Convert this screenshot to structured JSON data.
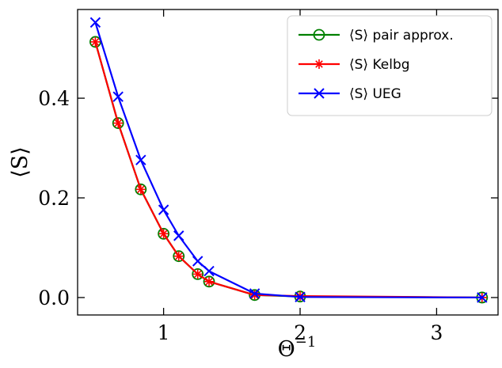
{
  "chart_data": {
    "type": "line",
    "xlabel": "Θ⁻¹",
    "ylabel": "⟨S⟩",
    "xlim": [
      0.37,
      3.45
    ],
    "ylim": [
      -0.035,
      0.578
    ],
    "xticks": [
      1,
      2,
      3
    ],
    "xtick_labels": [
      "1",
      "2",
      "3"
    ],
    "yticks": [
      0.0,
      0.2,
      0.4
    ],
    "ytick_labels": [
      "0.0",
      "0.2",
      "0.4"
    ],
    "grid": false,
    "legend_position": "top-right",
    "series": [
      {
        "name": "⟨S⟩ pair approx.",
        "color": "#008000",
        "marker": "circle",
        "x": [
          0.5,
          0.667,
          0.833,
          1.0,
          1.111,
          1.25,
          1.333,
          1.667,
          2.0,
          3.333
        ],
        "y": [
          0.513,
          0.35,
          0.217,
          0.128,
          0.083,
          0.047,
          0.032,
          0.005,
          0.002,
          0.0
        ]
      },
      {
        "name": "⟨S⟩ Kelbg",
        "color": "#ff0000",
        "marker": "star",
        "x": [
          0.5,
          0.667,
          0.833,
          1.0,
          1.111,
          1.25,
          1.333,
          1.667,
          2.0,
          3.333
        ],
        "y": [
          0.513,
          0.35,
          0.217,
          0.128,
          0.083,
          0.047,
          0.032,
          0.005,
          0.003,
          0.0
        ]
      },
      {
        "name": "⟨S⟩ UEG",
        "color": "#0000ff",
        "marker": "x",
        "x": [
          0.5,
          0.667,
          0.833,
          1.0,
          1.111,
          1.25,
          1.333,
          1.667,
          2.0,
          3.333
        ],
        "y": [
          0.552,
          0.403,
          0.276,
          0.176,
          0.124,
          0.073,
          0.053,
          0.008,
          0.001,
          0.0
        ]
      }
    ]
  }
}
